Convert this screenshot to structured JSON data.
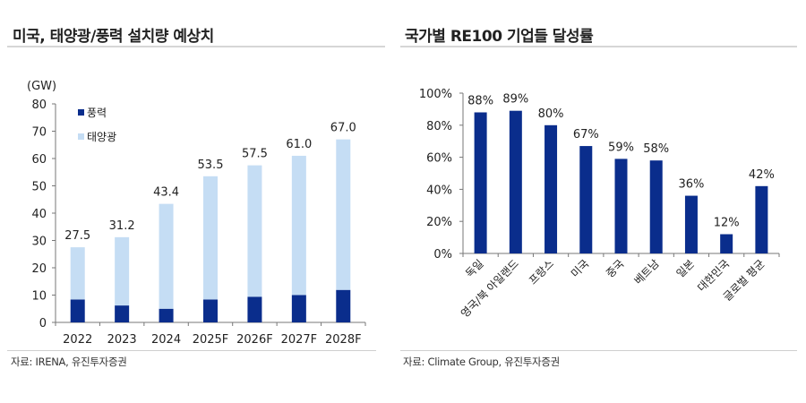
{
  "chart_data": [
    {
      "type": "bar",
      "stacked": true,
      "title": "미국, 태양광/풍력 설치량 예상치",
      "ylabel": "(GW)",
      "categories": [
        "2022",
        "2023",
        "2024",
        "2025F",
        "2026F",
        "2027F",
        "2028F"
      ],
      "series": [
        {
          "name": "풍력",
          "values": [
            8.4,
            6.2,
            5.0,
            8.4,
            9.4,
            10.0,
            11.9
          ],
          "color": "#0a2d8c"
        },
        {
          "name": "태양광",
          "values": [
            19.1,
            25.0,
            38.4,
            45.1,
            48.1,
            51.0,
            55.1
          ],
          "color": "#c5ddf4"
        }
      ],
      "totals": [
        "27.5",
        "31.2",
        "43.4",
        "53.5",
        "57.5",
        "61.0",
        "67.0"
      ],
      "ylim": [
        0,
        80
      ],
      "yticks": [
        "0",
        "10",
        "20",
        "30",
        "40",
        "50",
        "60",
        "70",
        "80"
      ],
      "legend": "top-left",
      "grid": false,
      "source": "자료: IRENA, 유진투자증권"
    },
    {
      "type": "bar",
      "title": "국가별 RE100 기업들 달성률",
      "categories": [
        "독일",
        "영국/북 아일랜드",
        "프랑스",
        "미국",
        "중국",
        "베트남",
        "일본",
        "대한민국",
        "글로벌 평균"
      ],
      "values": [
        88,
        89,
        80,
        67,
        59,
        58,
        36,
        12,
        42
      ],
      "labels": [
        "88%",
        "89%",
        "80%",
        "67%",
        "59%",
        "58%",
        "36%",
        "12%",
        "42%"
      ],
      "color": "#0a2d8c",
      "ylim": [
        0,
        100
      ],
      "yticks": [
        "0%",
        "20%",
        "40%",
        "60%",
        "80%",
        "100%"
      ],
      "grid": false,
      "source": "자료: Climate Group, 유진투자증권"
    }
  ]
}
